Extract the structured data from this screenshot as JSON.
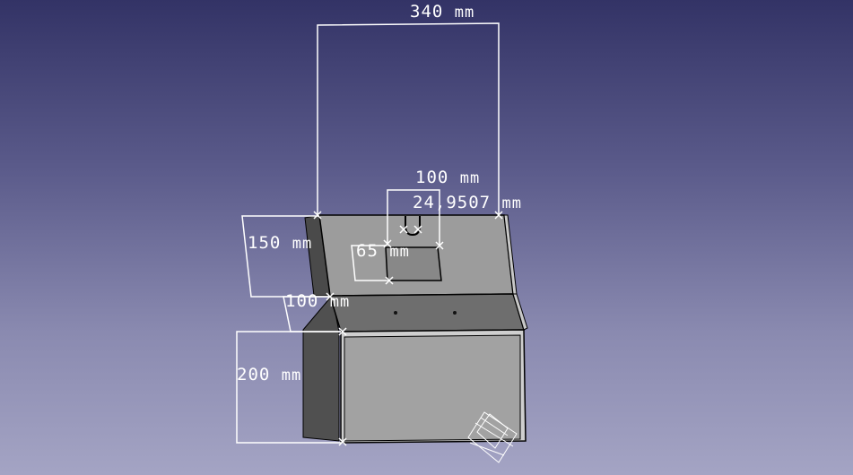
{
  "viewport": {
    "background_top": "#333366",
    "background_bottom": "#a4a4c4",
    "model_face_color": "#a0a0a0",
    "model_side_color": "#505050",
    "dimension_color": "#ffffff"
  },
  "dimensions": {
    "overall_width": {
      "value": "340",
      "unit": "mm"
    },
    "cutout_width": {
      "value": "100",
      "unit": "mm"
    },
    "panel_offset": {
      "value": "24,9507",
      "unit": "mm"
    },
    "panel_height": {
      "value": "150",
      "unit": "mm"
    },
    "cutout_height": {
      "value": "65",
      "unit": "mm"
    },
    "shelf_depth": {
      "value": "100",
      "unit": "mm"
    },
    "base_height": {
      "value": "200",
      "unit": "mm"
    }
  },
  "gizmo": {
    "icon": "axis-cross-icon"
  }
}
